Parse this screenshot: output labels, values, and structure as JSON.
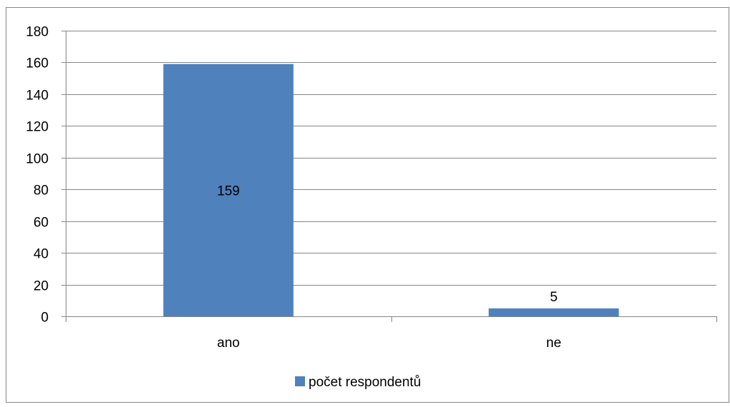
{
  "chart_data": {
    "type": "bar",
    "title": "",
    "xlabel": "",
    "ylabel": "",
    "categories": [
      "ano",
      "ne"
    ],
    "series": [
      {
        "name": "počet respondentů",
        "values": [
          159,
          5
        ],
        "color": "#4F81BD"
      }
    ],
    "ylim": [
      0,
      180
    ],
    "yticks": [
      0,
      20,
      40,
      60,
      80,
      100,
      120,
      140,
      160,
      180
    ],
    "grid": true,
    "legend_position": "bottom",
    "data_labels": true
  }
}
